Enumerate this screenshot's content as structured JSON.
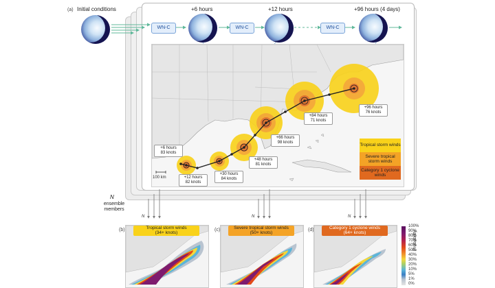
{
  "panels": {
    "a": "(a)",
    "b": "(b)",
    "c": "(c)",
    "d": "(d)"
  },
  "top_labels": {
    "initial": "Initial conditions",
    "t6": "+6 hours",
    "t12": "+12 hours",
    "t96": "+96 hours (4 days)"
  },
  "model_label": "WN-C",
  "ensemble": {
    "n": "N",
    "text": "ensemble members"
  },
  "n_marker": "N",
  "scale_bar": "100 km",
  "callouts": [
    {
      "time": "+6 hours",
      "speed": "83 knots"
    },
    {
      "time": "+12 hours",
      "speed": "82 knots"
    },
    {
      "time": "+30 hours",
      "speed": "84 knots"
    },
    {
      "time": "+48 hours",
      "speed": "81 knots"
    },
    {
      "time": "+66 hours",
      "speed": "98 knots"
    },
    {
      "time": "+84 hours",
      "speed": "71 knots"
    },
    {
      "time": "+96 hours",
      "speed": "76 knots"
    }
  ],
  "legend": {
    "ts": "Tropical storm winds",
    "sts": "Severe tropical storm winds",
    "c1": "Category 1 cyclone winds"
  },
  "legend_colors": {
    "ts": "#f9d21a",
    "sts": "#f4a326",
    "c1": "#e0691f"
  },
  "bottom_panels": [
    {
      "title": "Tropical storm winds",
      "sub": "(34+ knots)",
      "color": "#f9d21a"
    },
    {
      "title": "Severe tropical storm winds",
      "sub": "(50+ knots)",
      "color": "#f4a326"
    },
    {
      "title": "Category 1 cyclone winds",
      "sub": "(64+ knots)",
      "color": "#e0691f"
    }
  ],
  "colorbar": {
    "title": "Probability",
    "ticks": [
      "100%",
      "90%",
      "80%",
      "70%",
      "60%",
      "50%",
      "40%",
      "30%",
      "20%",
      "10%",
      "5%",
      "1%",
      "0%"
    ]
  }
}
